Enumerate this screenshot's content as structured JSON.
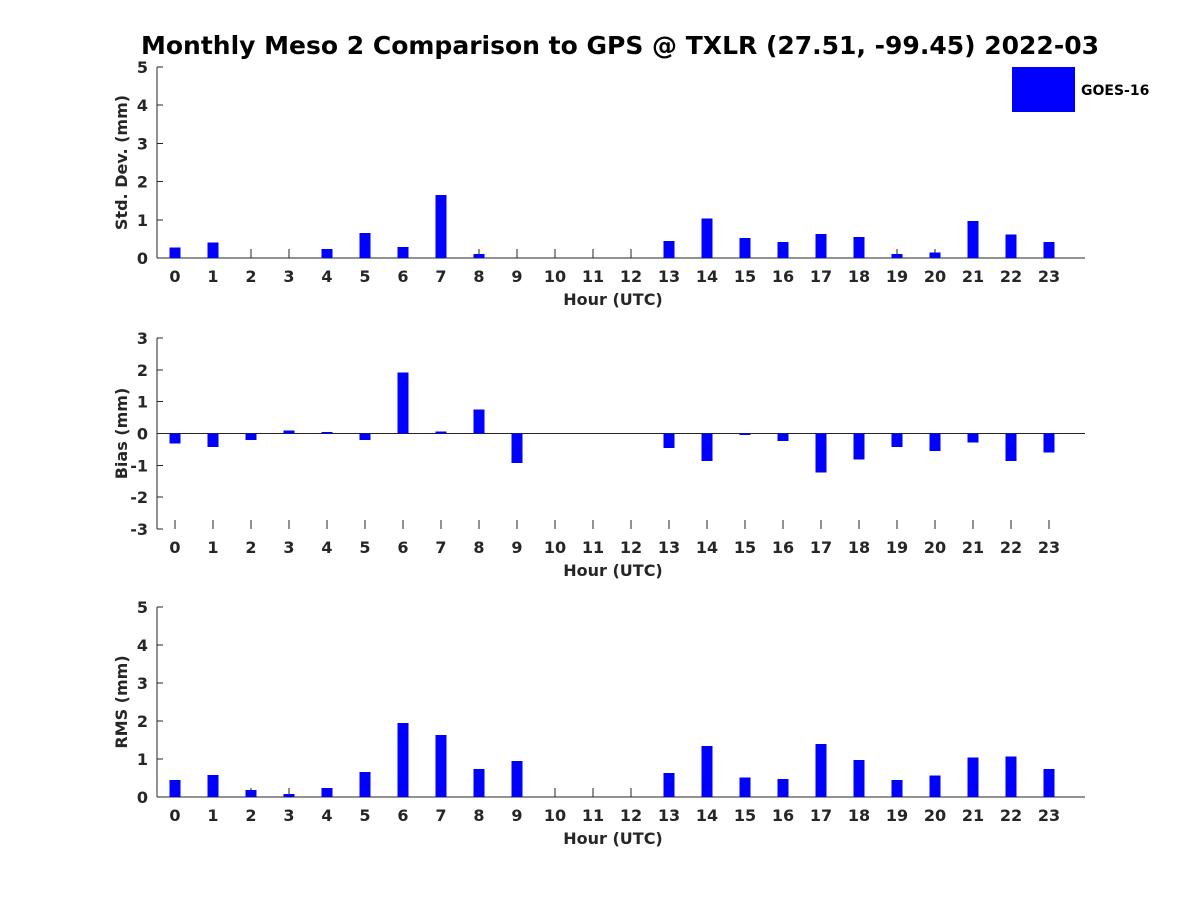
{
  "chart_data": {
    "type": "bar",
    "title": "Monthly Meso 2 Comparison to GPS @ TXLR (27.51, -99.45) 2022-03",
    "legend": {
      "label": "GOES-16",
      "color": "#0000ff",
      "position": "top-right"
    },
    "categories": [
      "0",
      "1",
      "2",
      "3",
      "4",
      "5",
      "6",
      "7",
      "8",
      "9",
      "10",
      "11",
      "12",
      "13",
      "14",
      "15",
      "16",
      "17",
      "18",
      "19",
      "20",
      "21",
      "22",
      "23"
    ],
    "panels": [
      {
        "name": "std-dev",
        "ylabel": "Std. Dev. (mm)",
        "xlabel": "Hour (UTC)",
        "ylim": [
          0,
          5
        ],
        "yticks": [
          0,
          1,
          2,
          3,
          4,
          5
        ],
        "values": [
          0.27,
          0.4,
          0,
          0,
          0.24,
          0.66,
          0.29,
          1.65,
          0.1,
          0,
          0,
          0,
          0,
          0.45,
          1.03,
          0.53,
          0.42,
          0.63,
          0.55,
          0.1,
          0.14,
          0.97,
          0.61,
          0.42
        ]
      },
      {
        "name": "bias",
        "ylabel": "Bias (mm)",
        "xlabel": "Hour (UTC)",
        "ylim": [
          -3,
          3
        ],
        "yticks": [
          -3,
          -2,
          -1,
          0,
          1,
          2,
          3
        ],
        "values": [
          -0.32,
          -0.42,
          -0.2,
          0.1,
          0.04,
          -0.2,
          1.92,
          0.07,
          0.76,
          -0.92,
          0,
          0,
          0,
          -0.45,
          -0.86,
          -0.05,
          -0.24,
          -1.22,
          -0.82,
          -0.42,
          -0.55,
          -0.28,
          -0.86,
          -0.6
        ]
      },
      {
        "name": "rms",
        "ylabel": "RMS (mm)",
        "xlabel": "Hour (UTC)",
        "ylim": [
          0,
          5
        ],
        "yticks": [
          0,
          1,
          2,
          3,
          4,
          5
        ],
        "values": [
          0.45,
          0.58,
          0.19,
          0.08,
          0.24,
          0.66,
          1.95,
          1.63,
          0.74,
          0.95,
          0,
          0,
          0,
          0.63,
          1.34,
          0.51,
          0.48,
          1.4,
          0.98,
          0.45,
          0.56,
          1.04,
          1.06,
          0.74
        ]
      }
    ]
  }
}
